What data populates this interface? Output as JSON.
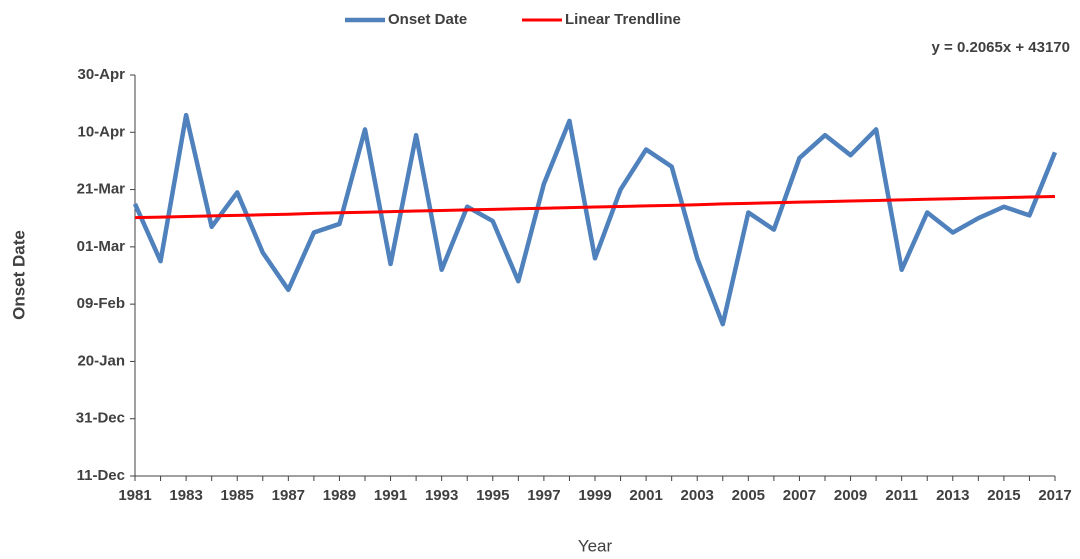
{
  "chart_data": {
    "type": "line",
    "x_label": "Year",
    "y_label": "Onset Date",
    "annotation": "y = 0.2065x + 43170",
    "categories": [
      "1981",
      null,
      "1983",
      null,
      "1985",
      null,
      "1987",
      null,
      "1989",
      null,
      "1991",
      null,
      "1993",
      null,
      "1995",
      null,
      "1997",
      null,
      "1999",
      null,
      "2001",
      null,
      "2003",
      null,
      "2005",
      null,
      "2007",
      null,
      "2009",
      null,
      "2011",
      null,
      "2013",
      null,
      "2015",
      null,
      "2017"
    ],
    "series": [
      {
        "name": "Onset Date",
        "color": "#4f81bd",
        "values": [
          43175,
          43155,
          43206,
          43167,
          43179,
          43158,
          43145,
          43165,
          43168,
          43201,
          43154,
          43199,
          43152,
          43174,
          43169,
          43148,
          43182,
          43204,
          43156,
          43180,
          43194,
          43188,
          43156,
          43133,
          43172,
          43166,
          43191,
          43199,
          43192,
          43201,
          43152,
          43172,
          43165,
          43170,
          43174,
          43171,
          43193
        ]
      },
      {
        "name": "Linear Trendline",
        "color": "#ff0000",
        "values": [
          43170.2,
          43170.4,
          43170.6,
          43170.8,
          43171.0,
          43171.2,
          43171.4,
          43171.7,
          43171.9,
          43172.1,
          43172.3,
          43172.5,
          43172.7,
          43172.9,
          43173.1,
          43173.3,
          43173.5,
          43173.7,
          43173.9,
          43174.1,
          43174.3,
          43174.5,
          43174.7,
          43175.0,
          43175.2,
          43175.4,
          43175.6,
          43175.8,
          43176.0,
          43176.2,
          43176.4,
          43176.6,
          43176.8,
          43177.0,
          43177.2,
          43177.4,
          43177.6
        ]
      }
    ],
    "ylim": [
      43080,
      43220
    ],
    "yticks": [
      {
        "value": 43080,
        "label": "11-Dec"
      },
      {
        "value": 43100,
        "label": "31-Dec"
      },
      {
        "value": 43120,
        "label": "20-Jan"
      },
      {
        "value": 43140,
        "label": "09-Feb"
      },
      {
        "value": 43160,
        "label": "01-Mar"
      },
      {
        "value": 43180,
        "label": "21-Mar"
      },
      {
        "value": 43200,
        "label": "10-Apr"
      },
      {
        "value": 43220,
        "label": "30-Apr"
      }
    ],
    "grid": false,
    "legend": "top"
  }
}
